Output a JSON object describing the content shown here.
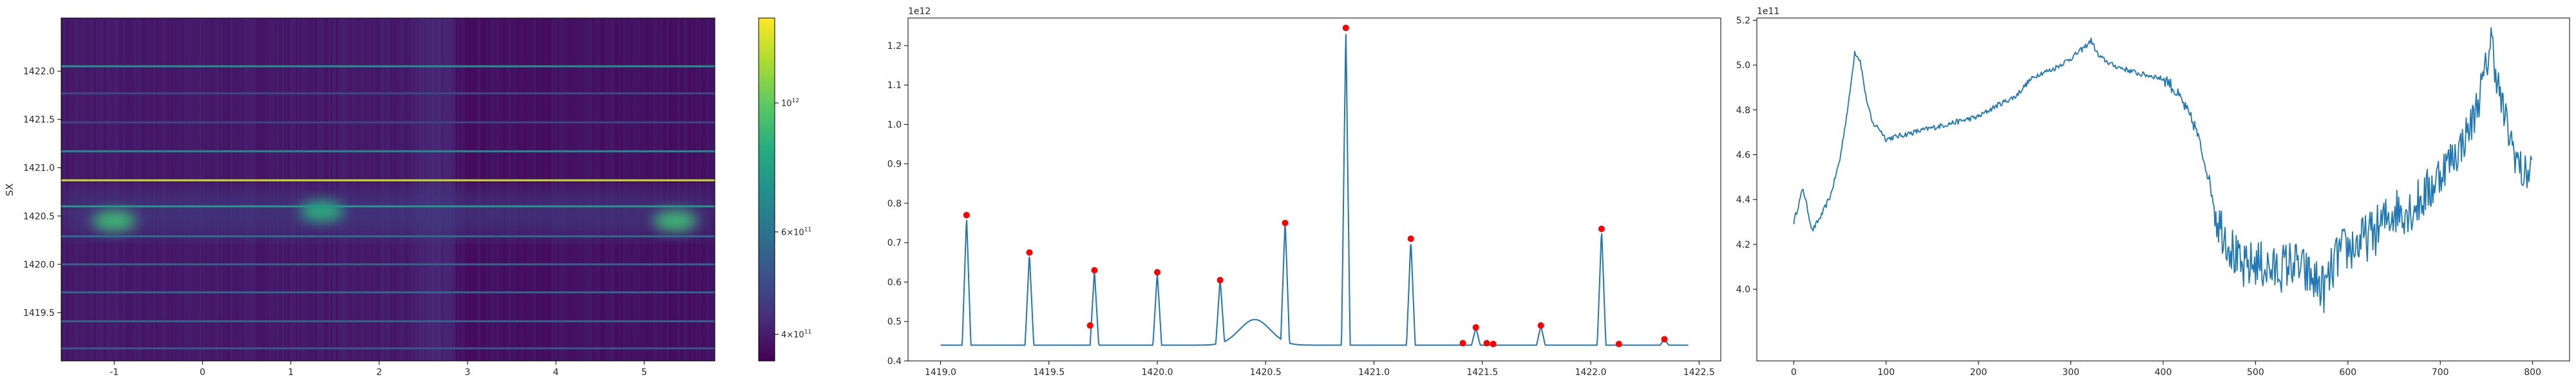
{
  "chart_data": [
    {
      "type": "heatmap",
      "ylabel": "SX",
      "xlim": [
        -1.6,
        5.8
      ],
      "ylim": [
        1419.0,
        1422.55
      ],
      "xticks": [
        "-1",
        "0",
        "1",
        "2",
        "3",
        "4",
        "5"
      ],
      "yticks": [
        "1419.5",
        "1420.0",
        "1420.5",
        "1421.0",
        "1421.5",
        "1422.0"
      ],
      "colormap": "viridis",
      "colorbar": {
        "scale": "log",
        "range": [
          360000000000.0,
          1400000000000.0
        ],
        "ticks": [
          {
            "value": 400000000000.0,
            "base": "4×10",
            "exp": "11"
          },
          {
            "value": 600000000000.0,
            "base": "6×10",
            "exp": "11"
          },
          {
            "value": 1000000000000.0,
            "base": "10",
            "exp": "12"
          }
        ]
      },
      "horizontal_lines": [
        {
          "y": 1419.13,
          "value": 520000000000.0
        },
        {
          "y": 1419.41,
          "value": 560000000000.0
        },
        {
          "y": 1419.71,
          "value": 570000000000.0
        },
        {
          "y": 1420.0,
          "value": 560000000000.0
        },
        {
          "y": 1420.29,
          "value": 590000000000.0
        },
        {
          "y": 1420.6,
          "value": 750000000000.0
        },
        {
          "y": 1420.87,
          "value": 1250000000000.0
        },
        {
          "y": 1421.17,
          "value": 710000000000.0
        },
        {
          "y": 1421.47,
          "value": 480000000000.0
        },
        {
          "y": 1421.77,
          "value": 490000000000.0
        },
        {
          "y": 1422.05,
          "value": 730000000000.0
        }
      ],
      "blobs": [
        {
          "x": -1.0,
          "y": 1420.45,
          "value": 900000000000.0
        },
        {
          "x": 1.35,
          "y": 1420.55,
          "value": 850000000000.0
        },
        {
          "x": 5.35,
          "y": 1420.45,
          "value": 900000000000.0
        }
      ]
    },
    {
      "type": "line",
      "offset_text": "1e12",
      "xlim": [
        1418.85,
        1422.6
      ],
      "ylim": [
        0.4,
        1.27
      ],
      "xticks": [
        "1419.0",
        "1419.5",
        "1420.0",
        "1420.5",
        "1421.0",
        "1421.5",
        "1422.0",
        "1422.5"
      ],
      "yticks": [
        "0.4",
        "0.5",
        "0.6",
        "0.7",
        "0.8",
        "0.9",
        "1.0",
        "1.1",
        "1.2"
      ],
      "line_color": "#1f77b4",
      "baseline": 0.44,
      "x_start": 1419.0,
      "x_end": 1422.45,
      "bump": {
        "x": 1420.45,
        "height": 0.065,
        "width": 0.1
      },
      "peaks": [
        {
          "x": 1419.12,
          "y": 0.77
        },
        {
          "x": 1419.41,
          "y": 0.675
        },
        {
          "x": 1419.71,
          "y": 0.63
        },
        {
          "x": 1420.0,
          "y": 0.625
        },
        {
          "x": 1420.29,
          "y": 0.605
        },
        {
          "x": 1420.59,
          "y": 0.75
        },
        {
          "x": 1420.87,
          "y": 1.245
        },
        {
          "x": 1421.17,
          "y": 0.71
        },
        {
          "x": 1421.47,
          "y": 0.485
        },
        {
          "x": 1421.77,
          "y": 0.49
        },
        {
          "x": 1422.05,
          "y": 0.735
        },
        {
          "x": 1422.34,
          "y": 0.455
        }
      ],
      "markers": [
        {
          "x": 1419.12,
          "y": 0.77
        },
        {
          "x": 1419.41,
          "y": 0.675
        },
        {
          "x": 1419.69,
          "y": 0.49
        },
        {
          "x": 1419.71,
          "y": 0.63
        },
        {
          "x": 1420.0,
          "y": 0.625
        },
        {
          "x": 1420.29,
          "y": 0.605
        },
        {
          "x": 1420.59,
          "y": 0.75
        },
        {
          "x": 1420.87,
          "y": 1.245
        },
        {
          "x": 1421.17,
          "y": 0.71
        },
        {
          "x": 1421.41,
          "y": 0.445
        },
        {
          "x": 1421.47,
          "y": 0.485
        },
        {
          "x": 1421.52,
          "y": 0.445
        },
        {
          "x": 1421.55,
          "y": 0.443
        },
        {
          "x": 1421.77,
          "y": 0.49
        },
        {
          "x": 1422.05,
          "y": 0.735
        },
        {
          "x": 1422.13,
          "y": 0.443
        },
        {
          "x": 1422.34,
          "y": 0.455
        }
      ],
      "marker_color": "#ff0000"
    },
    {
      "type": "line",
      "offset_text": "1e11",
      "xlim": [
        -40,
        840
      ],
      "ylim": [
        3.68,
        5.21
      ],
      "xticks": [
        "0",
        "100",
        "200",
        "300",
        "400",
        "500",
        "600",
        "700",
        "800"
      ],
      "yticks": [
        "4.0",
        "4.2",
        "4.4",
        "4.6",
        "4.8",
        "5.0",
        "5.2"
      ],
      "line_color": "#1f77b4",
      "n_points": 800,
      "keypoints": [
        [
          0,
          4.3
        ],
        [
          10,
          4.45
        ],
        [
          20,
          4.26
        ],
        [
          30,
          4.33
        ],
        [
          40,
          4.42
        ],
        [
          50,
          4.58
        ],
        [
          60,
          4.85
        ],
        [
          66,
          5.06
        ],
        [
          72,
          5.02
        ],
        [
          78,
          4.86
        ],
        [
          85,
          4.74
        ],
        [
          92,
          4.72
        ],
        [
          100,
          4.67
        ],
        [
          120,
          4.69
        ],
        [
          140,
          4.71
        ],
        [
          160,
          4.73
        ],
        [
          180,
          4.75
        ],
        [
          200,
          4.77
        ],
        [
          220,
          4.82
        ],
        [
          240,
          4.86
        ],
        [
          255,
          4.93
        ],
        [
          265,
          4.96
        ],
        [
          280,
          4.98
        ],
        [
          300,
          5.03
        ],
        [
          315,
          5.08
        ],
        [
          322,
          5.11
        ],
        [
          330,
          5.04
        ],
        [
          345,
          5.0
        ],
        [
          360,
          4.98
        ],
        [
          375,
          4.96
        ],
        [
          390,
          4.95
        ],
        [
          405,
          4.93
        ],
        [
          420,
          4.84
        ],
        [
          435,
          4.72
        ],
        [
          448,
          4.52
        ],
        [
          458,
          4.32
        ],
        [
          470,
          4.22
        ],
        [
          485,
          4.08
        ],
        [
          500,
          4.12
        ],
        [
          520,
          4.08
        ],
        [
          540,
          4.12
        ],
        [
          560,
          4.05
        ],
        [
          575,
          4.0
        ],
        [
          590,
          4.16
        ],
        [
          610,
          4.2
        ],
        [
          630,
          4.26
        ],
        [
          650,
          4.35
        ],
        [
          670,
          4.36
        ],
        [
          690,
          4.45
        ],
        [
          705,
          4.55
        ],
        [
          720,
          4.62
        ],
        [
          735,
          4.75
        ],
        [
          748,
          4.95
        ],
        [
          755,
          5.12
        ],
        [
          765,
          4.85
        ],
        [
          775,
          4.68
        ],
        [
          790,
          4.5
        ],
        [
          800,
          4.55
        ]
      ]
    }
  ]
}
